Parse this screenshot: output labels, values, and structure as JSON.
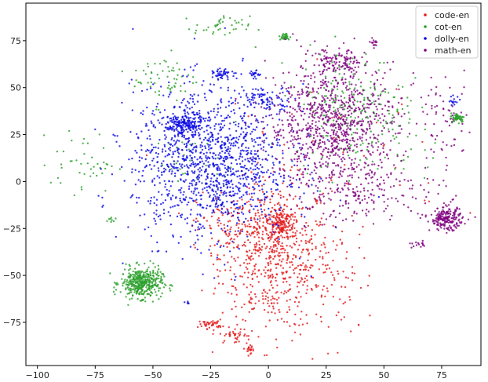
{
  "chart_data": {
    "type": "scatter",
    "title": "",
    "xlabel": "",
    "ylabel": "",
    "xlim": [
      -105,
      92
    ],
    "ylim": [
      -98,
      95
    ],
    "x_ticks": [
      -100,
      -75,
      -50,
      -25,
      0,
      25,
      50,
      75
    ],
    "y_ticks": [
      -75,
      -50,
      -25,
      0,
      25,
      50,
      75
    ],
    "x_tick_labels": [
      "−100",
      "−75",
      "−50",
      "−25",
      "0",
      "25",
      "50",
      "75"
    ],
    "y_tick_labels": [
      "−75",
      "−50",
      "−25",
      "0",
      "25",
      "50",
      "75"
    ],
    "grid": false,
    "legend_position": "top-right",
    "series": [
      {
        "name": "code-en",
        "color": "#e41a1c",
        "clusters": [
          {
            "cx": 3,
            "cy": -40,
            "sx": 12,
            "sy": 20,
            "n": 650
          },
          {
            "cx": 5,
            "cy": -22,
            "sx": 3,
            "sy": 4,
            "n": 140
          },
          {
            "cx": -15,
            "cy": -25,
            "sx": 8,
            "sy": 10,
            "n": 120
          },
          {
            "cx": -25,
            "cy": -76,
            "sx": 2.5,
            "sy": 1.2,
            "n": 40
          },
          {
            "cx": -15,
            "cy": -82,
            "sx": 3,
            "sy": 2,
            "n": 35
          },
          {
            "cx": -8,
            "cy": -89,
            "sx": 1.5,
            "sy": 1.2,
            "n": 20
          },
          {
            "cx": 30,
            "cy": -55,
            "sx": 8,
            "sy": 14,
            "n": 60
          },
          {
            "cx": 30,
            "cy": 10,
            "sx": 22,
            "sy": 25,
            "n": 50
          }
        ]
      },
      {
        "name": "cot-en",
        "color": "#2ca02c",
        "clusters": [
          {
            "cx": -55,
            "cy": -54,
            "sx": 4.5,
            "sy": 4,
            "n": 420
          },
          {
            "cx": -20,
            "cy": 82,
            "sx": 6,
            "sy": 3,
            "n": 40
          },
          {
            "cx": 7,
            "cy": 77,
            "sx": 1.2,
            "sy": 1,
            "n": 35
          },
          {
            "cx": -80,
            "cy": 10,
            "sx": 7,
            "sy": 8,
            "n": 45
          },
          {
            "cx": -45,
            "cy": 55,
            "sx": 7,
            "sy": 7,
            "n": 60
          },
          {
            "cx": 82,
            "cy": 34,
            "sx": 1.5,
            "sy": 1.2,
            "n": 55
          },
          {
            "cx": 35,
            "cy": 40,
            "sx": 12,
            "sy": 15,
            "n": 220
          },
          {
            "cx": -30,
            "cy": 10,
            "sx": 10,
            "sy": 8,
            "n": 30
          },
          {
            "cx": -68,
            "cy": -20,
            "sx": 1,
            "sy": 1,
            "n": 8
          },
          {
            "cx": 55,
            "cy": 20,
            "sx": 10,
            "sy": 12,
            "n": 35
          }
        ]
      },
      {
        "name": "dolly-en",
        "color": "#0a0ae6",
        "clusters": [
          {
            "cx": -25,
            "cy": 10,
            "sx": 17,
            "sy": 20,
            "n": 1300
          },
          {
            "cx": -37,
            "cy": 30,
            "sx": 4,
            "sy": 3,
            "n": 180
          },
          {
            "cx": -20,
            "cy": 57,
            "sx": 2,
            "sy": 1.3,
            "n": 45
          },
          {
            "cx": -6,
            "cy": 57,
            "sx": 1.2,
            "sy": 1,
            "n": 20
          },
          {
            "cx": 0,
            "cy": 44,
            "sx": 6,
            "sy": 3,
            "n": 80
          },
          {
            "cx": 80,
            "cy": 43,
            "sx": 1.2,
            "sy": 1.5,
            "n": 15
          },
          {
            "cx": -35,
            "cy": -65,
            "sx": 0.6,
            "sy": 0.6,
            "n": 5
          }
        ]
      },
      {
        "name": "math-en",
        "color": "#800080",
        "clusters": [
          {
            "cx": 28,
            "cy": 30,
            "sx": 14,
            "sy": 16,
            "n": 900
          },
          {
            "cx": 77,
            "cy": -20,
            "sx": 3.5,
            "sy": 3,
            "n": 200
          },
          {
            "cx": 30,
            "cy": 63,
            "sx": 6,
            "sy": 4,
            "n": 120
          },
          {
            "cx": 43,
            "cy": -5,
            "sx": 17,
            "sy": 8,
            "n": 180
          },
          {
            "cx": 76,
            "cy": 30,
            "sx": 6,
            "sy": 12,
            "n": 70
          },
          {
            "cx": 46,
            "cy": 74,
            "sx": 1,
            "sy": 1,
            "n": 15
          },
          {
            "cx": 65,
            "cy": -34,
            "sx": 2,
            "sy": 1,
            "n": 15
          }
        ]
      }
    ]
  }
}
